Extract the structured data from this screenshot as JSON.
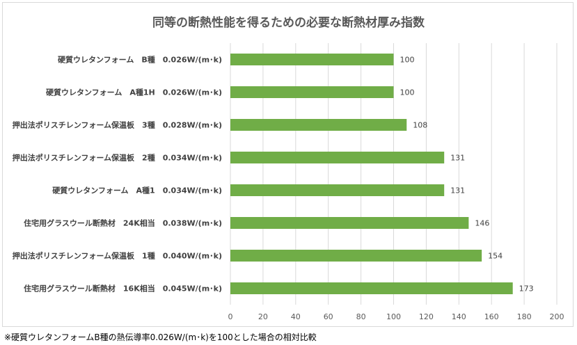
{
  "chart_data": {
    "type": "bar",
    "orientation": "horizontal",
    "title": "同等の断熱性能を得るための必要な断熱材厚み指数",
    "categories": [
      "硬質ウレタンフォーム　B種　0.026W/(m･k)",
      "硬質ウレタンフォーム　A種1H　0.026W/(m･k)",
      "押出法ポリスチレンフォーム保温板　3種　0.028W/(m･k)",
      "押出法ポリスチレンフォーム保温板　2種　0.034W/(m･k)",
      "硬質ウレタンフォーム　A種1　0.034W/(m･k)",
      "住宅用グラスウール断熱材　24K相当　0.038W/(m･k)",
      "押出法ポリスチレンフォーム保温板　1種　0.040W/(m･k)",
      "住宅用グラスウール断熱材　16K相当　0.045W/(m･k)"
    ],
    "values": [
      100,
      100,
      108,
      131,
      131,
      146,
      154,
      173
    ],
    "xlim": [
      0,
      200
    ],
    "xticks": [
      0,
      20,
      40,
      60,
      80,
      100,
      120,
      140,
      160,
      180,
      200
    ],
    "grid": "vertical",
    "bar_color": "#70ad47",
    "data_labels": true
  },
  "footnote": "※硬質ウレタンフォームB種の熱伝導率0.026W/(m･k)を100とした場合の相対比較"
}
